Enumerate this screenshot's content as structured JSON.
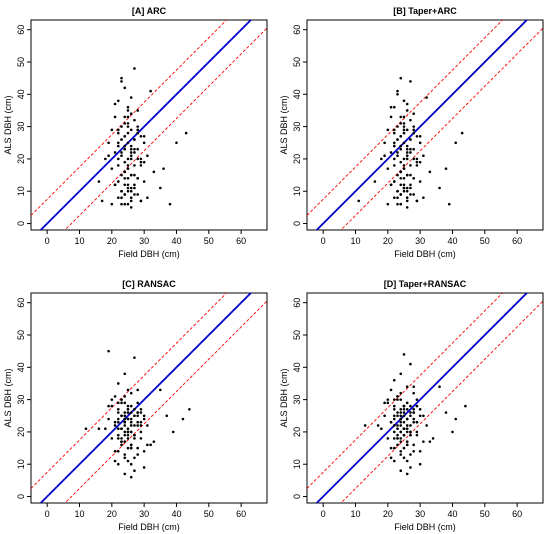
{
  "chart_data": [
    {
      "type": "scatter",
      "title": "[A] ARC",
      "xlabel": "Field DBH (cm)",
      "ylabel": "ALS DBH (cm)",
      "xlim": [
        -5,
        68
      ],
      "ylim": [
        -2,
        63
      ],
      "xticks": [
        "0",
        "10",
        "20",
        "30",
        "40",
        "50",
        "60"
      ],
      "yticks": [
        "0",
        "10",
        "20",
        "30",
        "40",
        "50",
        "60"
      ],
      "reference_line": {
        "slope": 1,
        "intercept": 0,
        "color": "#0000cc"
      },
      "band_lines": [
        {
          "slope": 1,
          "intercept": 7.5,
          "color": "#ff0000"
        },
        {
          "slope": 1,
          "intercept": -7.5,
          "color": "#ff0000"
        }
      ],
      "x": [
        23,
        24,
        22,
        25,
        26,
        21,
        27,
        24,
        28,
        23,
        20,
        26,
        25,
        22,
        29,
        24,
        27,
        23,
        30,
        19,
        25,
        26,
        22,
        28,
        24,
        21,
        27,
        31,
        23,
        25,
        18,
        26,
        24,
        29,
        22,
        27,
        25,
        20,
        33,
        24,
        26,
        23,
        28,
        25,
        22,
        30,
        24,
        27,
        21,
        26,
        35,
        23,
        25,
        28,
        24,
        22,
        26,
        29,
        17,
        25,
        24,
        27,
        23,
        32,
        26,
        21,
        28,
        24,
        25,
        22,
        30,
        27,
        24,
        26,
        23,
        19,
        29,
        25,
        36,
        24,
        26,
        28,
        22,
        25,
        27,
        23,
        24,
        31,
        26,
        20,
        25,
        28,
        23,
        40,
        24,
        26,
        22,
        29,
        25,
        27,
        24,
        21,
        26,
        23,
        38,
        25,
        28,
        24,
        22,
        27,
        26,
        30,
        24,
        16,
        25,
        27,
        29,
        23,
        26,
        24,
        43,
        22,
        28,
        25
      ],
      "y": [
        45,
        42,
        38,
        36,
        34,
        33,
        32,
        31,
        30,
        30,
        29,
        29,
        28,
        28,
        27,
        27,
        26,
        26,
        25,
        25,
        25,
        24,
        24,
        23,
        23,
        22,
        22,
        21,
        21,
        20,
        20,
        20,
        19,
        19,
        18,
        18,
        17,
        17,
        16,
        16,
        15,
        15,
        14,
        14,
        13,
        13,
        12,
        12,
        12,
        11,
        11,
        10,
        10,
        9,
        9,
        8,
        8,
        7,
        7,
        6,
        6,
        48,
        44,
        41,
        39,
        37,
        35,
        33,
        31,
        29,
        27,
        26,
        24,
        23,
        22,
        21,
        20,
        18,
        17,
        16,
        15,
        14,
        13,
        12,
        11,
        10,
        9,
        8,
        7,
        6,
        30,
        28,
        26,
        25,
        24,
        22,
        20,
        18,
        17,
        15,
        14,
        12,
        10,
        8,
        6,
        33,
        29,
        27,
        25,
        23,
        21,
        19,
        16,
        13,
        11,
        9,
        7,
        6,
        5,
        6,
        28,
        24,
        20,
        35
      ]
    },
    {
      "type": "scatter",
      "title": "[B] Taper+ARC",
      "xlabel": "Field DBH (cm)",
      "ylabel": "ALS DBH (cm)",
      "xlim": [
        -5,
        68
      ],
      "ylim": [
        -2,
        63
      ],
      "xticks": [
        "0",
        "10",
        "20",
        "30",
        "40",
        "50",
        "60"
      ],
      "yticks": [
        "0",
        "10",
        "20",
        "30",
        "40",
        "50",
        "60"
      ],
      "reference_line": {
        "slope": 1,
        "intercept": 0,
        "color": "#0000cc"
      },
      "band_lines": [
        {
          "slope": 1,
          "intercept": 7.5,
          "color": "#ff0000"
        },
        {
          "slope": 1,
          "intercept": -7.5,
          "color": "#ff0000"
        }
      ],
      "x": [
        24,
        23,
        25,
        22,
        26,
        21,
        27,
        24,
        28,
        23,
        20,
        26,
        25,
        22,
        29,
        24,
        27,
        23,
        30,
        19,
        25,
        26,
        22,
        28,
        24,
        21,
        27,
        31,
        23,
        25,
        18,
        26,
        24,
        29,
        22,
        27,
        25,
        20,
        33,
        24,
        26,
        23,
        28,
        25,
        22,
        30,
        24,
        27,
        21,
        26,
        36,
        23,
        25,
        28,
        24,
        22,
        26,
        29,
        11,
        25,
        24,
        27,
        23,
        32,
        26,
        21,
        28,
        24,
        25,
        22,
        30,
        27,
        24,
        26,
        23,
        19,
        29,
        25,
        38,
        24,
        26,
        28,
        22,
        25,
        27,
        23,
        24,
        31,
        26,
        20,
        25,
        28,
        23,
        41,
        24,
        26,
        22,
        29,
        25,
        27,
        24,
        21,
        26,
        23,
        39,
        25,
        28,
        24,
        22,
        27,
        26,
        30,
        24,
        16,
        25,
        27,
        29,
        23,
        26,
        24,
        43,
        22,
        28,
        25
      ],
      "y": [
        45,
        41,
        38,
        36,
        35,
        33,
        32,
        31,
        30,
        30,
        29,
        29,
        28,
        28,
        27,
        27,
        26,
        26,
        25,
        25,
        25,
        24,
        24,
        23,
        23,
        22,
        22,
        21,
        21,
        20,
        20,
        20,
        19,
        19,
        18,
        18,
        17,
        17,
        16,
        16,
        15,
        15,
        14,
        14,
        13,
        13,
        12,
        12,
        12,
        11,
        11,
        10,
        10,
        9,
        9,
        8,
        8,
        7,
        7,
        29,
        6,
        44,
        40,
        39,
        37,
        36,
        34,
        33,
        31,
        29,
        27,
        26,
        24,
        23,
        22,
        21,
        20,
        18,
        17,
        16,
        15,
        14,
        13,
        12,
        11,
        10,
        9,
        8,
        7,
        6,
        30,
        28,
        26,
        25,
        24,
        22,
        20,
        18,
        17,
        15,
        14,
        12,
        10,
        8,
        6,
        33,
        29,
        27,
        25,
        23,
        21,
        19,
        16,
        13,
        11,
        9,
        7,
        6,
        5,
        6,
        28,
        24,
        20,
        11
      ]
    },
    {
      "type": "scatter",
      "title": "[C] RANSAC",
      "xlabel": "Field DBH (cm)",
      "ylabel": "ALS DBH (cm)",
      "xlim": [
        -5,
        68
      ],
      "ylim": [
        -2,
        63
      ],
      "xticks": [
        "0",
        "10",
        "20",
        "30",
        "40",
        "50",
        "60"
      ],
      "yticks": [
        "0",
        "10",
        "20",
        "30",
        "40",
        "50",
        "60"
      ],
      "reference_line": {
        "slope": 1,
        "intercept": 0,
        "color": "#0000cc"
      },
      "band_lines": [
        {
          "slope": 1,
          "intercept": 7.5,
          "color": "#ff0000"
        },
        {
          "slope": 1,
          "intercept": -7.5,
          "color": "#ff0000"
        }
      ],
      "x": [
        19,
        27,
        24,
        22,
        25,
        26,
        21,
        23,
        28,
        24,
        20,
        26,
        25,
        22,
        29,
        24,
        27,
        23,
        30,
        19,
        25,
        26,
        22,
        28,
        24,
        21,
        27,
        31,
        23,
        25,
        18,
        26,
        24,
        29,
        22,
        27,
        25,
        20,
        33,
        24,
        26,
        23,
        28,
        25,
        22,
        30,
        24,
        27,
        21,
        26,
        35,
        23,
        25,
        28,
        24,
        22,
        26,
        29,
        12,
        25,
        24,
        27,
        23,
        32,
        26,
        21,
        28,
        24,
        25,
        22,
        30,
        27,
        24,
        26,
        23,
        19,
        29,
        25,
        37,
        24,
        26,
        28,
        22,
        25,
        27,
        23,
        24,
        31,
        26,
        20,
        25,
        28,
        23,
        42,
        24,
        26,
        22,
        29,
        25,
        27,
        24,
        21,
        26,
        23,
        39,
        25,
        28,
        24,
        22,
        27,
        26,
        30,
        24,
        16,
        25,
        27,
        29,
        23,
        26,
        24,
        44,
        22,
        28,
        25
      ],
      "y": [
        45,
        43,
        38,
        35,
        33,
        32,
        31,
        30,
        29,
        29,
        28,
        28,
        27,
        27,
        26,
        26,
        25,
        25,
        25,
        24,
        24,
        24,
        23,
        23,
        23,
        22,
        22,
        22,
        21,
        21,
        21,
        20,
        20,
        20,
        19,
        19,
        18,
        18,
        17,
        17,
        16,
        16,
        15,
        15,
        14,
        14,
        13,
        12,
        11,
        10,
        33,
        29,
        27,
        26,
        25,
        24,
        23,
        22,
        21,
        20,
        19,
        18,
        17,
        16,
        15,
        14,
        13,
        12,
        11,
        10,
        9,
        8,
        7,
        6,
        30,
        28,
        27,
        26,
        25,
        24,
        23,
        22,
        21,
        20,
        19,
        18,
        17,
        16,
        15,
        30,
        28,
        26,
        25,
        24,
        22,
        20,
        18,
        23,
        26,
        25,
        24,
        23,
        22,
        21,
        20,
        19,
        33,
        31,
        29,
        27,
        26,
        24,
        23,
        21,
        20,
        19,
        18,
        17,
        16,
        23,
        27,
        26,
        25,
        24
      ]
    },
    {
      "type": "scatter",
      "title": "[D] Taper+RANSAC",
      "xlabel": "Field DBH (cm)",
      "ylabel": "ALS DBH (cm)",
      "xlim": [
        -5,
        68
      ],
      "ylim": [
        -2,
        63
      ],
      "xticks": [
        "0",
        "10",
        "20",
        "30",
        "40",
        "50",
        "60"
      ],
      "yticks": [
        "0",
        "10",
        "20",
        "30",
        "40",
        "50",
        "60"
      ],
      "reference_line": {
        "slope": 1,
        "intercept": 0,
        "color": "#0000cc"
      },
      "band_lines": [
        {
          "slope": 1,
          "intercept": 7.5,
          "color": "#ff0000"
        },
        {
          "slope": 1,
          "intercept": -7.5,
          "color": "#ff0000"
        }
      ],
      "x": [
        25,
        27,
        24,
        22,
        26,
        21,
        28,
        23,
        29,
        24,
        20,
        26,
        25,
        22,
        30,
        24,
        27,
        23,
        31,
        19,
        25,
        26,
        22,
        28,
        24,
        21,
        27,
        32,
        23,
        25,
        18,
        26,
        24,
        29,
        22,
        27,
        25,
        20,
        34,
        24,
        26,
        23,
        28,
        25,
        22,
        30,
        24,
        27,
        21,
        26,
        36,
        23,
        25,
        28,
        24,
        22,
        26,
        29,
        13,
        25,
        24,
        27,
        23,
        33,
        26,
        21,
        28,
        24,
        25,
        22,
        30,
        27,
        24,
        26,
        23,
        19,
        29,
        25,
        38,
        24,
        26,
        28,
        22,
        25,
        27,
        23,
        24,
        31,
        26,
        20,
        25,
        28,
        23,
        41,
        24,
        26,
        22,
        29,
        25,
        27,
        24,
        21,
        26,
        23,
        40,
        25,
        28,
        24,
        22,
        27,
        26,
        30,
        24,
        17,
        25,
        27,
        29,
        23,
        26,
        24,
        44,
        22,
        28,
        25
      ],
      "y": [
        44,
        41,
        38,
        36,
        34,
        33,
        32,
        31,
        30,
        30,
        29,
        29,
        28,
        28,
        27,
        27,
        26,
        26,
        25,
        25,
        25,
        24,
        24,
        24,
        23,
        23,
        22,
        22,
        22,
        21,
        21,
        21,
        20,
        20,
        20,
        19,
        19,
        18,
        18,
        17,
        17,
        16,
        16,
        15,
        15,
        14,
        14,
        13,
        12,
        11,
        34,
        30,
        28,
        27,
        26,
        25,
        24,
        23,
        22,
        21,
        20,
        19,
        18,
        17,
        16,
        15,
        14,
        13,
        12,
        11,
        10,
        9,
        8,
        7,
        31,
        29,
        28,
        27,
        26,
        25,
        24,
        23,
        22,
        21,
        20,
        19,
        18,
        17,
        16,
        30,
        28,
        26,
        25,
        24,
        22,
        20,
        18,
        23,
        26,
        25,
        24,
        23,
        22,
        21,
        20,
        19,
        34,
        32,
        30,
        28,
        27,
        25,
        24,
        22,
        21,
        20,
        19,
        18,
        17,
        24,
        28,
        27,
        26,
        23
      ]
    }
  ]
}
